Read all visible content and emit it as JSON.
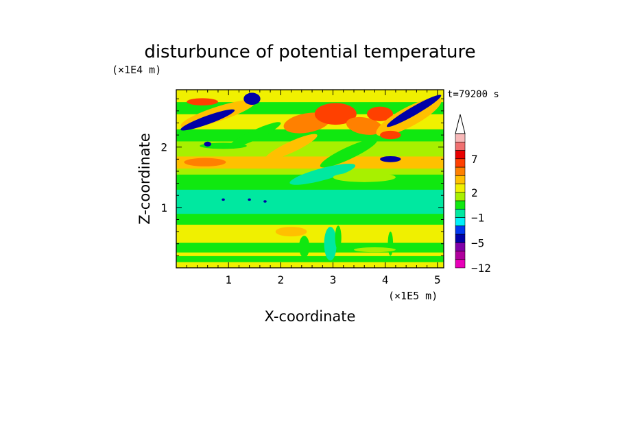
{
  "chart_data": {
    "type": "heatmap",
    "title": "disturbunce of potential temperature",
    "time_label": "t=79200 s",
    "xlabel": "X-coordinate",
    "ylabel": "Z-coordinate",
    "x_unit": "(×1E5 m)",
    "y_unit": "(×1E4 m)",
    "xlim": [
      0,
      5.12
    ],
    "ylim": [
      0,
      2.95
    ],
    "x_ticks": [
      1,
      2,
      3,
      4,
      5
    ],
    "x_tick_labels": [
      "1",
      "2",
      "3",
      "4",
      "5"
    ],
    "y_ticks": [
      1,
      2
    ],
    "y_tick_labels": [
      "1",
      "2"
    ],
    "x_minor_step": 0.2,
    "y_minor_step": 0.2,
    "colorbar": {
      "levels": [
        "-12",
        "-9",
        "-7",
        "-5",
        "-3",
        "-2",
        "-1",
        "0",
        "1",
        "2",
        "3",
        "4",
        "5",
        "7",
        "9",
        "11"
      ],
      "labeled_levels": [
        "7",
        "2",
        "-1",
        "-5",
        "-12"
      ],
      "colors": [
        "#e800b8",
        "#b0009c",
        "#8000a8",
        "#0000a8",
        "#0038f0",
        "#00f0f8",
        "#00e8a0",
        "#10e810",
        "#a8f000",
        "#f0f000",
        "#ffc000",
        "#ff8000",
        "#ff4000",
        "#e80000",
        "#f07070",
        "#f8b8b8"
      ],
      "extend": "max",
      "extend_color": "#ffffff"
    },
    "field_bands": [
      {
        "z": [
          0.0,
          0.1
        ],
        "value": 2
      },
      {
        "z": [
          0.1,
          0.2
        ],
        "value": 0
      },
      {
        "z": [
          0.2,
          0.26
        ],
        "value": 2
      },
      {
        "z": [
          0.26,
          0.42
        ],
        "value": 0
      },
      {
        "z": [
          0.42,
          0.72
        ],
        "value": 2
      },
      {
        "z": [
          0.72,
          0.9
        ],
        "value": 0
      },
      {
        "z": [
          0.9,
          1.3
        ],
        "value": -1
      },
      {
        "z": [
          1.3,
          1.55
        ],
        "value": 0
      },
      {
        "z": [
          1.55,
          1.65
        ],
        "value": 1
      },
      {
        "z": [
          1.65,
          1.85
        ],
        "value": 3
      },
      {
        "z": [
          1.85,
          2.1
        ],
        "value": 1
      },
      {
        "z": [
          2.1,
          2.3
        ],
        "value": 0
      },
      {
        "z": [
          2.3,
          2.55
        ],
        "value": 2
      },
      {
        "z": [
          2.55,
          2.75
        ],
        "value": 0
      },
      {
        "z": [
          2.75,
          2.95
        ],
        "value": 2
      }
    ],
    "field_features": [
      {
        "x": 0.8,
        "z": 2.55,
        "rx": 0.75,
        "rz": 0.12,
        "angle_deg": 18,
        "value": 3
      },
      {
        "x": 0.6,
        "z": 2.45,
        "rx": 0.55,
        "rz": 0.07,
        "angle_deg": 20,
        "value": -5
      },
      {
        "x": 0.5,
        "z": 2.75,
        "rx": 0.3,
        "rz": 0.06,
        "angle_deg": 0,
        "value": 5
      },
      {
        "x": 1.45,
        "z": 2.8,
        "rx": 0.16,
        "rz": 0.1,
        "angle_deg": 0,
        "value": -5
      },
      {
        "x": 0.55,
        "z": 1.75,
        "rx": 0.4,
        "rz": 0.07,
        "angle_deg": 0,
        "value": 4
      },
      {
        "x": 0.9,
        "z": 2.02,
        "rx": 0.45,
        "rz": 0.05,
        "angle_deg": 0,
        "value": 0
      },
      {
        "x": 0.6,
        "z": 2.05,
        "rx": 0.07,
        "rz": 0.04,
        "angle_deg": 0,
        "value": -5
      },
      {
        "x": 2.5,
        "z": 2.4,
        "rx": 0.45,
        "rz": 0.16,
        "angle_deg": 10,
        "value": 4
      },
      {
        "x": 3.05,
        "z": 2.55,
        "rx": 0.4,
        "rz": 0.18,
        "angle_deg": 0,
        "value": 5
      },
      {
        "x": 3.6,
        "z": 2.35,
        "rx": 0.35,
        "rz": 0.14,
        "angle_deg": -10,
        "value": 4
      },
      {
        "x": 3.9,
        "z": 2.55,
        "rx": 0.25,
        "rz": 0.12,
        "angle_deg": 0,
        "value": 5
      },
      {
        "x": 4.45,
        "z": 2.5,
        "rx": 0.7,
        "rz": 0.16,
        "angle_deg": 28,
        "value": 3
      },
      {
        "x": 4.55,
        "z": 2.6,
        "rx": 0.6,
        "rz": 0.07,
        "angle_deg": 30,
        "value": -5
      },
      {
        "x": 4.1,
        "z": 2.2,
        "rx": 0.2,
        "rz": 0.07,
        "angle_deg": 0,
        "value": 5
      },
      {
        "x": 4.1,
        "z": 1.8,
        "rx": 0.2,
        "rz": 0.05,
        "angle_deg": 0,
        "value": -5
      },
      {
        "x": 3.3,
        "z": 1.9,
        "rx": 0.6,
        "rz": 0.1,
        "angle_deg": 25,
        "value": 0
      },
      {
        "x": 2.8,
        "z": 1.55,
        "rx": 0.65,
        "rz": 0.1,
        "angle_deg": 15,
        "value": -1
      },
      {
        "x": 1.5,
        "z": 2.2,
        "rx": 0.55,
        "rz": 0.08,
        "angle_deg": 25,
        "value": 0
      },
      {
        "x": 2.2,
        "z": 2.0,
        "rx": 0.55,
        "rz": 0.09,
        "angle_deg": 25,
        "value": 3
      },
      {
        "x": 3.6,
        "z": 1.5,
        "rx": 0.6,
        "rz": 0.08,
        "angle_deg": 0,
        "value": 1
      },
      {
        "x": 0.9,
        "z": 1.13,
        "rx": 0.03,
        "rz": 0.02,
        "angle_deg": 0,
        "value": -5
      },
      {
        "x": 1.4,
        "z": 1.13,
        "rx": 0.03,
        "rz": 0.02,
        "angle_deg": 0,
        "value": -5
      },
      {
        "x": 1.7,
        "z": 1.1,
        "rx": 0.03,
        "rz": 0.02,
        "angle_deg": 0,
        "value": -5
      },
      {
        "x": 2.45,
        "z": 0.35,
        "rx": 0.1,
        "rz": 0.18,
        "angle_deg": 0,
        "value": 0
      },
      {
        "x": 2.95,
        "z": 0.4,
        "rx": 0.12,
        "rz": 0.28,
        "angle_deg": 0,
        "value": -1
      },
      {
        "x": 3.1,
        "z": 0.5,
        "rx": 0.06,
        "rz": 0.2,
        "angle_deg": 0,
        "value": 0
      },
      {
        "x": 4.1,
        "z": 0.4,
        "rx": 0.05,
        "rz": 0.2,
        "angle_deg": 0,
        "value": 0
      },
      {
        "x": 2.2,
        "z": 0.6,
        "rx": 0.3,
        "rz": 0.08,
        "angle_deg": 0,
        "value": 3
      },
      {
        "x": 3.8,
        "z": 0.3,
        "rx": 0.4,
        "rz": 0.04,
        "angle_deg": 0,
        "value": 1
      }
    ]
  }
}
